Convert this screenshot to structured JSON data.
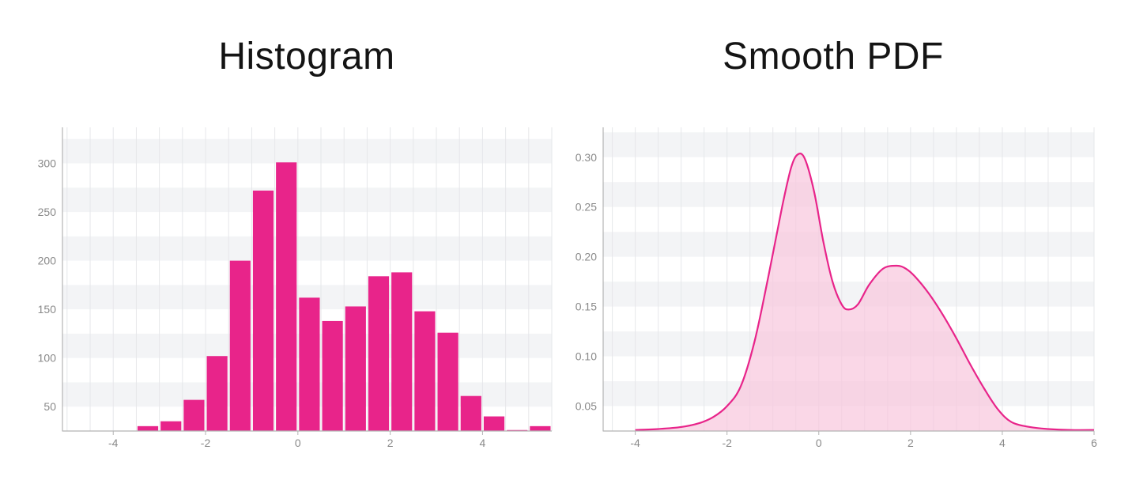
{
  "colors": {
    "accent": "#e8248a",
    "fill": "#f8c6dd",
    "band": "#f3f4f6",
    "grid": "#e6e7ea",
    "axis": "#b3b3b3",
    "tick_text": "#8a8a8a"
  },
  "chart_data": [
    {
      "type": "bar",
      "title": "Histogram",
      "xlabel": "",
      "ylabel": "",
      "xlim": [
        -5.1,
        5.5
      ],
      "ylim": [
        25,
        337
      ],
      "xticks": [
        -4,
        -2,
        0,
        2,
        4
      ],
      "xtick_labels": [
        "-4",
        "-2",
        "0",
        "2",
        "4"
      ],
      "yticks": [
        50,
        100,
        150,
        200,
        250,
        300
      ],
      "ytick_labels": [
        "50",
        "100",
        "150",
        "200",
        "250",
        "300"
      ],
      "bin_width": 0.5,
      "bin_starts": [
        -3.5,
        -3.0,
        -2.5,
        -2.0,
        -1.5,
        -1.0,
        -0.5,
        0.0,
        0.5,
        1.0,
        1.5,
        2.0,
        2.5,
        3.0,
        3.5,
        4.0,
        4.5,
        5.0
      ],
      "values": [
        30,
        35,
        57,
        102,
        200,
        272,
        301,
        162,
        138,
        153,
        184,
        188,
        148,
        126,
        61,
        40,
        26,
        30
      ]
    },
    {
      "type": "area",
      "title": "Smooth PDF",
      "xlabel": "",
      "ylabel": "",
      "xlim": [
        -4.7,
        6.0
      ],
      "ylim": [
        0.025,
        0.33
      ],
      "xticks": [
        -4,
        -2,
        0,
        2,
        4,
        6
      ],
      "xtick_labels": [
        "-4",
        "-2",
        "0",
        "2",
        "4",
        "6"
      ],
      "yticks": [
        0.05,
        0.1,
        0.15,
        0.2,
        0.25,
        0.3
      ],
      "ytick_labels": [
        "0.05",
        "0.10",
        "0.15",
        "0.20",
        "0.25",
        "0.30"
      ],
      "x": [
        -4.0,
        -3.5,
        -3.0,
        -2.6,
        -2.3,
        -2.0,
        -1.7,
        -1.4,
        -1.1,
        -0.8,
        -0.6,
        -0.45,
        -0.3,
        -0.1,
        0.1,
        0.3,
        0.5,
        0.65,
        0.85,
        1.1,
        1.4,
        1.7,
        1.9,
        2.1,
        2.4,
        2.7,
        3.0,
        3.3,
        3.6,
        3.9,
        4.2,
        4.6,
        5.0,
        5.5,
        6.0
      ],
      "y": [
        0.026,
        0.027,
        0.029,
        0.033,
        0.039,
        0.05,
        0.07,
        0.115,
        0.18,
        0.25,
        0.29,
        0.303,
        0.298,
        0.265,
        0.215,
        0.175,
        0.152,
        0.147,
        0.152,
        0.172,
        0.188,
        0.191,
        0.188,
        0.18,
        0.163,
        0.142,
        0.118,
        0.092,
        0.068,
        0.047,
        0.034,
        0.029,
        0.027,
        0.026,
        0.026
      ]
    }
  ]
}
